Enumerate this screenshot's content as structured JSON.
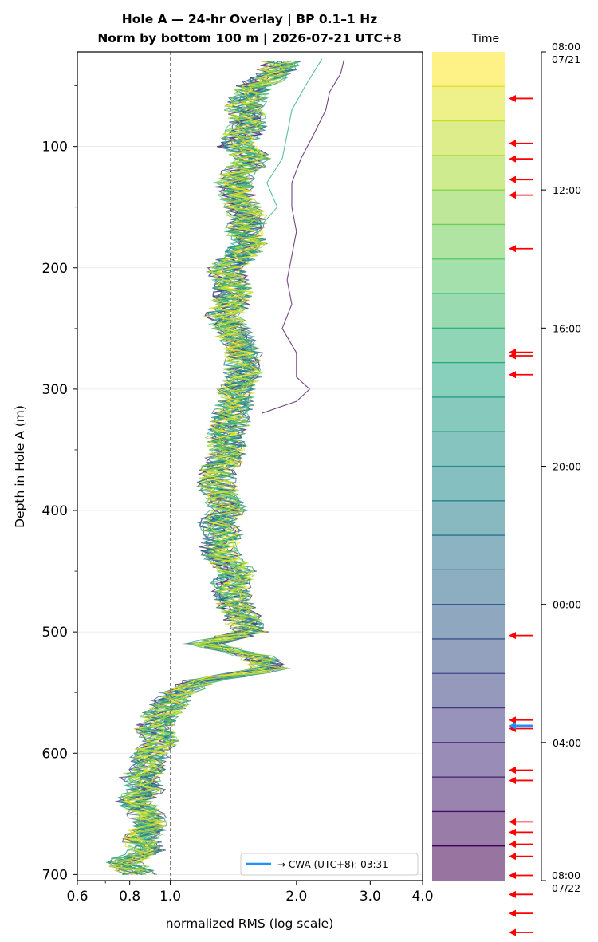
{
  "chart_data": {
    "type": "line",
    "title": "Hole A — 24-hr Overlay  |  BP 0.1–1 Hz",
    "subtitle": "Norm by bottom 100 m  |  2026-07-21 UTC+8",
    "xlabel": "normalized RMS  (log scale)",
    "ylabel": "Depth in Hole A (m)",
    "x_scale": "log",
    "xlim": [
      0.6,
      4.0
    ],
    "ylim": [
      705,
      22
    ],
    "x_ticks": [
      "0.6",
      "0.8",
      "1.0",
      "2.0",
      "3.0",
      "4.0"
    ],
    "y_ticks": [
      "100",
      "200",
      "300",
      "400",
      "500",
      "600",
      "700"
    ],
    "grid": "horizontal",
    "reference_line": 1.0,
    "legend": {
      "label": "→ CWA (UTC+8): 03:31",
      "color": "#1e90ff",
      "placement": "lower-right"
    },
    "colormap": "viridis",
    "colorbar": {
      "title": "Time",
      "start_label": [
        "08:00",
        "07/21"
      ],
      "end_label": [
        "08:00",
        "07/22"
      ],
      "tick_labels": [
        "12:00",
        "16:00",
        "20:00",
        "00:00",
        "04:00"
      ],
      "hours_shown": 24,
      "event_arrow_hours": [
        1.35,
        2.65,
        3.1,
        3.7,
        4.15,
        5.7,
        8.7,
        8.8,
        9.35,
        16.9,
        19.35,
        19.6,
        20.8,
        21.1,
        22.3,
        22.6,
        22.95,
        23.3,
        23.85,
        24.4,
        24.95,
        25.5
      ],
      "highlight_hour": 19.52,
      "highlight_color": "#1e90ff",
      "arrow_color": "#ff0000"
    },
    "profile": {
      "depths": [
        30,
        40,
        50,
        60,
        70,
        80,
        90,
        100,
        110,
        120,
        130,
        140,
        150,
        160,
        170,
        180,
        190,
        200,
        210,
        220,
        230,
        240,
        250,
        260,
        270,
        280,
        290,
        300,
        310,
        320,
        330,
        340,
        350,
        360,
        370,
        380,
        390,
        400,
        410,
        420,
        430,
        440,
        450,
        460,
        470,
        480,
        490,
        500,
        510,
        520,
        530,
        540,
        550,
        560,
        570,
        580,
        590,
        600,
        610,
        620,
        630,
        640,
        650,
        660,
        670,
        680,
        690,
        700
      ],
      "rms": [
        1.85,
        1.8,
        1.6,
        1.55,
        1.5,
        1.55,
        1.5,
        1.45,
        1.6,
        1.48,
        1.42,
        1.45,
        1.5,
        1.55,
        1.5,
        1.55,
        1.48,
        1.35,
        1.4,
        1.42,
        1.4,
        1.35,
        1.4,
        1.45,
        1.5,
        1.48,
        1.5,
        1.45,
        1.45,
        1.4,
        1.4,
        1.35,
        1.38,
        1.35,
        1.3,
        1.3,
        1.35,
        1.38,
        1.3,
        1.35,
        1.3,
        1.35,
        1.45,
        1.4,
        1.42,
        1.45,
        1.5,
        1.55,
        1.2,
        1.6,
        1.75,
        1.2,
        1.05,
        1.0,
        0.95,
        0.92,
        0.95,
        0.9,
        0.9,
        0.85,
        0.88,
        0.82,
        0.88,
        0.9,
        0.85,
        0.88,
        0.78,
        0.85
      ]
    },
    "outlier_profiles": [
      {
        "hour": 0.5,
        "depths": [
          28,
          40,
          55,
          70,
          90,
          110,
          130,
          150,
          170,
          190,
          210,
          230,
          250,
          270,
          290,
          300,
          310,
          320
        ],
        "rms": [
          2.6,
          2.55,
          2.4,
          2.35,
          2.2,
          2.05,
          1.95,
          1.95,
          2.0,
          1.95,
          1.9,
          1.95,
          1.85,
          2.0,
          2.0,
          2.15,
          2.0,
          1.65
        ]
      },
      {
        "hour": 14.5,
        "depths": [
          28,
          50,
          70,
          90,
          110,
          130,
          150,
          170
        ],
        "rms": [
          2.3,
          2.1,
          1.95,
          1.9,
          1.85,
          1.7,
          1.8,
          1.6
        ]
      }
    ]
  }
}
